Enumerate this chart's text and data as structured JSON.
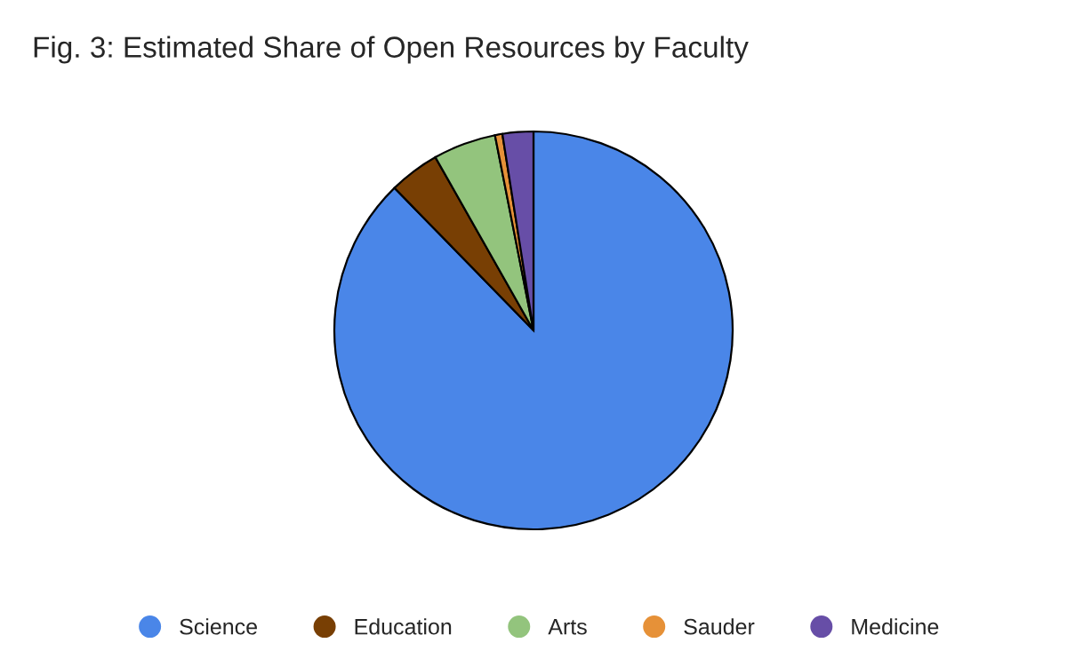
{
  "chart_data": {
    "type": "pie",
    "title": "Fig. 3: Estimated Share of Open Resources by Faculty",
    "categories": [
      "Science",
      "Education",
      "Arts",
      "Sauder",
      "Medicine"
    ],
    "values": [
      87.7,
      4.1,
      5.1,
      0.6,
      2.5
    ],
    "colors": [
      "#4a86e8",
      "#783f04",
      "#93c47d",
      "#e69138",
      "#674ea7"
    ],
    "legend": "bottom"
  }
}
